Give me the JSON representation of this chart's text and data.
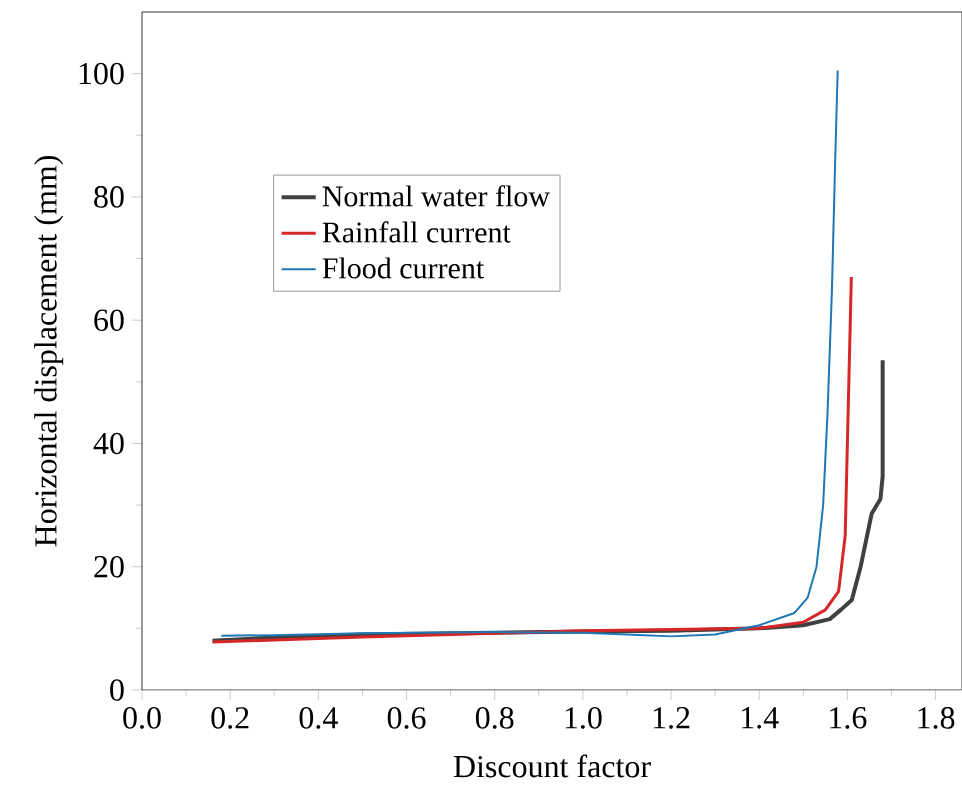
{
  "chart_data": {
    "type": "line",
    "xlabel": "Discount factor",
    "ylabel": "Horizontal displacement (mm)",
    "xlim": [
      0,
      1.86
    ],
    "ylim": [
      0,
      110
    ],
    "xticks": [
      {
        "value": 0,
        "label": "0.0"
      },
      {
        "value": 0.2,
        "label": "0.2"
      },
      {
        "value": 0.4,
        "label": "0.4"
      },
      {
        "value": 0.6,
        "label": "0.6"
      },
      {
        "value": 0.8,
        "label": "0.8"
      },
      {
        "value": 1.0,
        "label": "1.0"
      },
      {
        "value": 1.2,
        "label": "1.2"
      },
      {
        "value": 1.4,
        "label": "1.4"
      },
      {
        "value": 1.6,
        "label": "1.6"
      },
      {
        "value": 1.8,
        "label": "1.8"
      }
    ],
    "yticks": [
      0,
      20,
      40,
      60,
      80,
      100
    ],
    "legend": "top left",
    "grid": false,
    "marker": "none",
    "line_style": "solid",
    "series": [
      {
        "name": "Normal water flow",
        "color": "#404040",
        "x": [
          0.16,
          0.3,
          0.5,
          0.8,
          1.0,
          1.2,
          1.4,
          1.5,
          1.56,
          1.585,
          1.61,
          1.63,
          1.655,
          1.675,
          1.68,
          1.68
        ],
        "values": [
          8,
          8.5,
          9,
          9.3,
          9.5,
          9.6,
          10,
          10.5,
          11.5,
          13,
          14.6,
          20,
          28.6,
          31,
          34.7,
          53.5
        ]
      },
      {
        "name": "Rainfall current",
        "color": "#d62728",
        "x": [
          0.16,
          0.3,
          0.5,
          0.8,
          1.0,
          1.2,
          1.4,
          1.5,
          1.55,
          1.58,
          1.595,
          1.6,
          1.605,
          1.609
        ],
        "values": [
          7.8,
          8.1,
          8.6,
          9.2,
          9.6,
          9.8,
          10,
          11,
          13,
          16,
          25,
          40,
          55,
          67
        ]
      },
      {
        "name": "Flood current",
        "color": "#1f77b4",
        "x": [
          0.18,
          0.3,
          0.5,
          0.8,
          1.0,
          1.1,
          1.2,
          1.3,
          1.4,
          1.48,
          1.51,
          1.53,
          1.545,
          1.555,
          1.565,
          1.572,
          1.578
        ],
        "values": [
          8.8,
          8.9,
          9.2,
          9.4,
          9.3,
          9,
          8.7,
          9,
          10.5,
          12.5,
          15,
          20,
          30,
          45,
          65,
          85,
          100.5
        ]
      }
    ]
  }
}
